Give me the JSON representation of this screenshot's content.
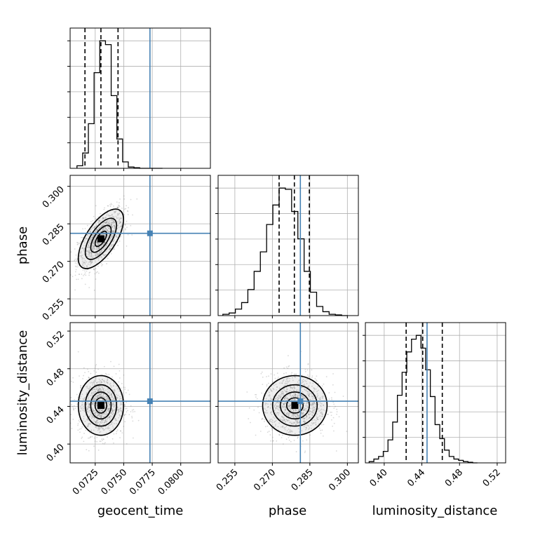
{
  "chart_data": {
    "type": "corner",
    "grid": true,
    "truth_color": "#4682b4",
    "parameters": [
      {
        "name": "geocent_time",
        "label": "geocent_time",
        "range": [
          0.0703,
          0.0826
        ],
        "ticks": [
          0.0725,
          0.075,
          0.0775,
          0.08
        ],
        "tick_labels": [
          "0.0725",
          "0.0750",
          "0.0775",
          "0.0800"
        ],
        "truth": 0.0773,
        "quantiles": [
          0.0716,
          0.073,
          0.0745
        ],
        "hist": {
          "edges": [
            0.0709,
            0.0714,
            0.0719,
            0.0724,
            0.0729,
            0.0734,
            0.0739,
            0.0744,
            0.0749,
            0.0754,
            0.0759,
            0.0764,
            0.0769,
            0.0774,
            0.0779,
            0.0784
          ],
          "counts": [
            0.02,
            0.12,
            0.35,
            0.75,
            1.0,
            0.97,
            0.57,
            0.23,
            0.05,
            0.01,
            0.005,
            0,
            0,
            0,
            0
          ]
        }
      },
      {
        "name": "phase",
        "label": "phase",
        "range": [
          0.2483,
          0.3044
        ],
        "ticks": [
          0.255,
          0.27,
          0.285,
          0.3
        ],
        "tick_labels": [
          "0.255",
          "0.270",
          "0.285",
          "0.300"
        ],
        "truth": 0.2812,
        "quantiles": [
          0.2727,
          0.2788,
          0.2848
        ],
        "hist": {
          "edges": [
            0.2502,
            0.2527,
            0.2552,
            0.2577,
            0.2602,
            0.2627,
            0.2652,
            0.2677,
            0.2702,
            0.2727,
            0.2752,
            0.2777,
            0.2802,
            0.2827,
            0.2852,
            0.2877,
            0.2902,
            0.2927,
            0.2952,
            0.2977,
            0.3002
          ],
          "counts": [
            0.01,
            0.02,
            0.05,
            0.1,
            0.2,
            0.34,
            0.49,
            0.7,
            0.85,
            0.98,
            0.97,
            0.8,
            0.59,
            0.34,
            0.18,
            0.07,
            0.03,
            0.01,
            0.005,
            0
          ]
        }
      },
      {
        "name": "luminosity_distance",
        "label": "luminosity_distance",
        "range": [
          0.38,
          0.529
        ],
        "ticks": [
          0.4,
          0.44,
          0.48,
          0.52
        ],
        "tick_labels": [
          "0.40",
          "0.44",
          "0.48",
          "0.52"
        ],
        "truth": 0.4455,
        "quantiles": [
          0.4233,
          0.4409,
          0.4617
        ],
        "hist": {
          "edges": [
            0.384,
            0.389,
            0.394,
            0.399,
            0.404,
            0.409,
            0.414,
            0.419,
            0.424,
            0.429,
            0.434,
            0.439,
            0.444,
            0.449,
            0.454,
            0.459,
            0.464,
            0.469,
            0.474,
            0.479,
            0.484,
            0.489,
            0.494,
            0.499
          ],
          "counts": [
            0.01,
            0.03,
            0.05,
            0.09,
            0.18,
            0.32,
            0.53,
            0.71,
            0.87,
            0.97,
            1.0,
            0.9,
            0.73,
            0.52,
            0.3,
            0.19,
            0.1,
            0.05,
            0.03,
            0.02,
            0.01,
            0.005,
            0
          ]
        }
      }
    ],
    "pairs": [
      {
        "row": 1,
        "col": 0,
        "x_param": "geocent_time",
        "y_param": "phase",
        "mean": [
          0.073,
          0.279
        ],
        "sd": [
          0.001,
          0.006
        ],
        "corr": 0.65,
        "samples": 1100
      },
      {
        "row": 2,
        "col": 0,
        "x_param": "geocent_time",
        "y_param": "luminosity_distance",
        "mean": [
          0.073,
          0.441
        ],
        "sd": [
          0.001,
          0.016
        ],
        "corr": 0.0,
        "samples": 1100
      },
      {
        "row": 2,
        "col": 1,
        "x_param": "phase",
        "y_param": "luminosity_distance",
        "mean": [
          0.279,
          0.441
        ],
        "sd": [
          0.0065,
          0.016
        ],
        "corr": 0.0,
        "samples": 1100
      }
    ]
  }
}
